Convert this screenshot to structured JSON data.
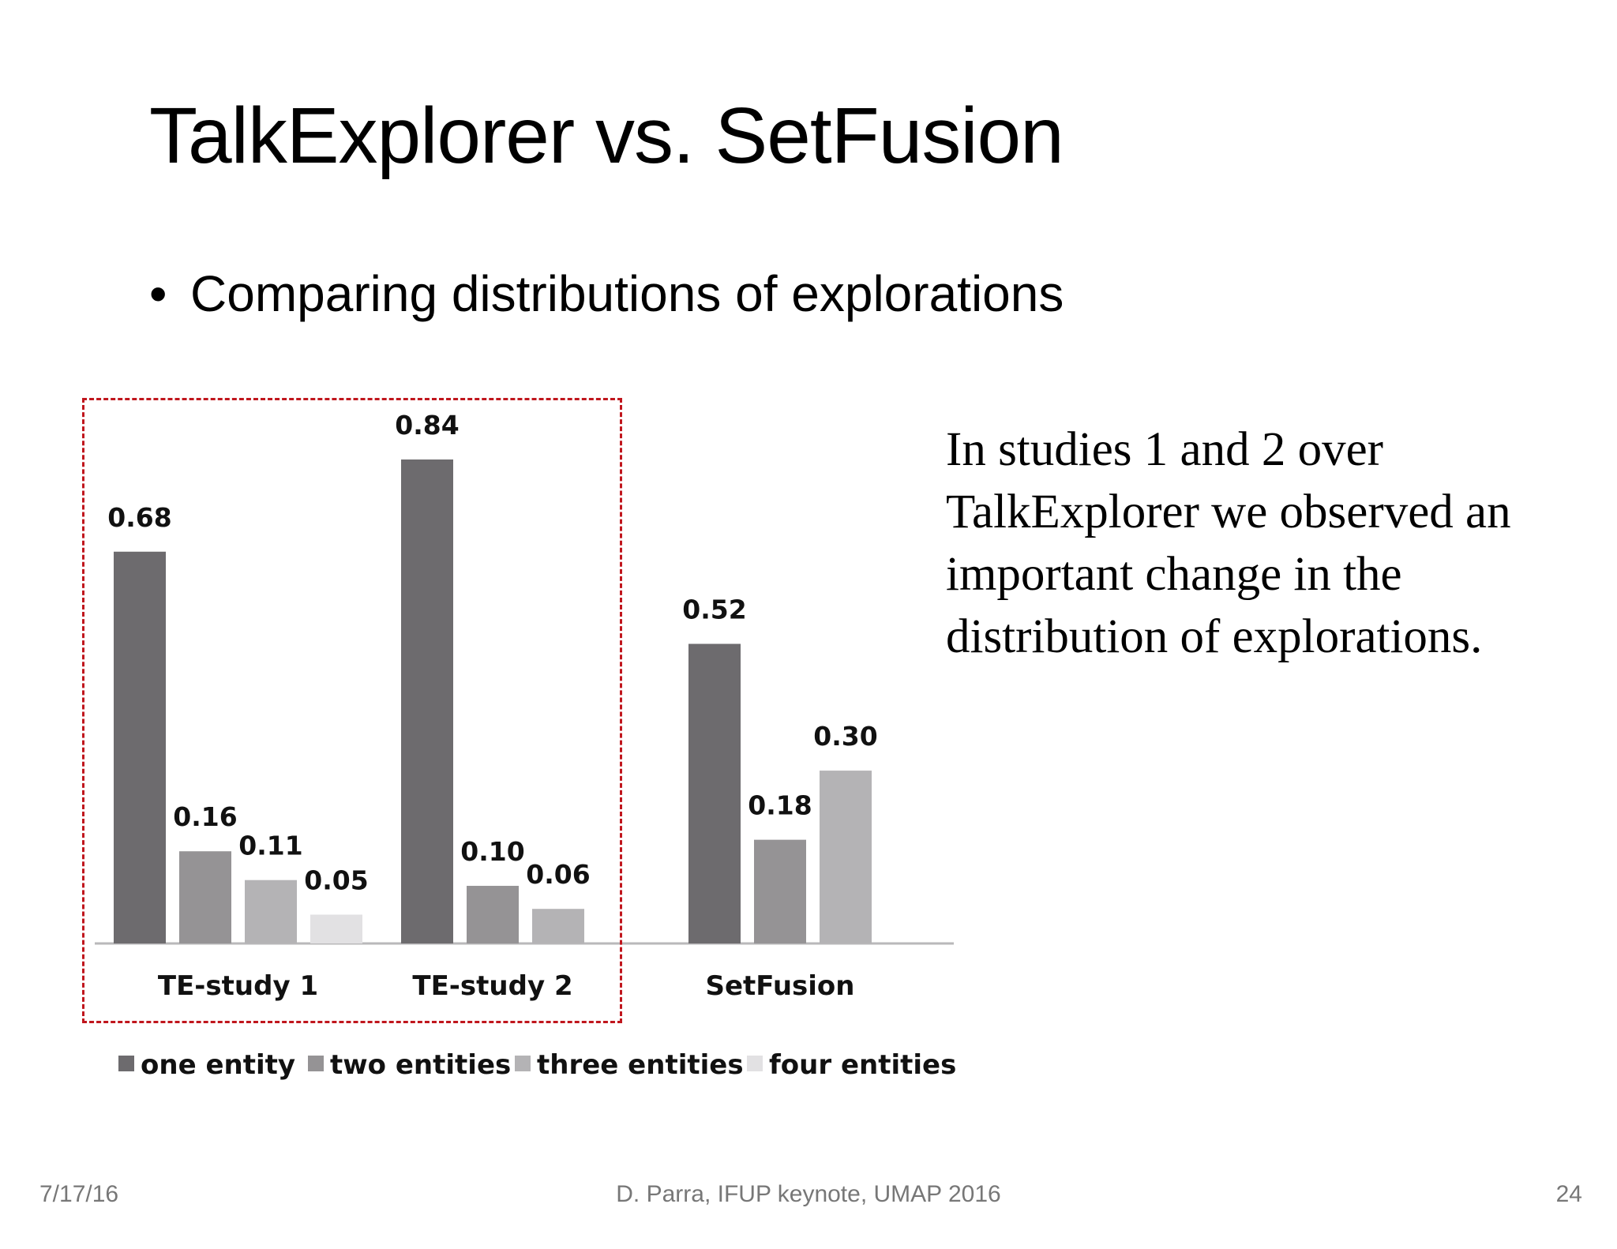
{
  "slide": {
    "title": "TalkExplorer vs. SetFusion",
    "bullet": "Comparing distributions of explorations",
    "bullet_marker": "•",
    "side_note": "In studies 1 and 2 over TalkExplorer we observed an important change in the distribution of explorations.",
    "footer": {
      "date": "7/17/16",
      "center": "D. Parra, IFUP keynote, UMAP 2016",
      "page": "24"
    }
  },
  "chart_data": {
    "type": "bar",
    "title": "",
    "xlabel": "",
    "ylabel": "",
    "categories": [
      "TE-study 1",
      "TE-study 2",
      "SetFusion"
    ],
    "series": [
      {
        "name": "one entity",
        "color": "#6d6b6e",
        "values": [
          0.68,
          0.84,
          0.52
        ]
      },
      {
        "name": "two entities",
        "color": "#959395",
        "values": [
          0.16,
          0.1,
          0.18
        ]
      },
      {
        "name": "three entities",
        "color": "#b4b3b5",
        "values": [
          0.11,
          0.06,
          0.3
        ]
      },
      {
        "name": "four entities",
        "color": "#e2e1e3",
        "values": [
          0.05,
          null,
          null
        ]
      }
    ],
    "data_labels": [
      [
        "0.68",
        "0.16",
        "0.11",
        "0.05"
      ],
      [
        "0.84",
        "0.10",
        "0.06",
        null
      ],
      [
        "0.52",
        "0.18",
        "0.30",
        null
      ]
    ],
    "ylim": [
      0,
      0.84
    ],
    "grid": false,
    "legend": "bottom",
    "highlight": {
      "categories": [
        "TE-study 1",
        "TE-study 2"
      ],
      "style": "dashed-red-box",
      "color": "#c0161d"
    }
  }
}
